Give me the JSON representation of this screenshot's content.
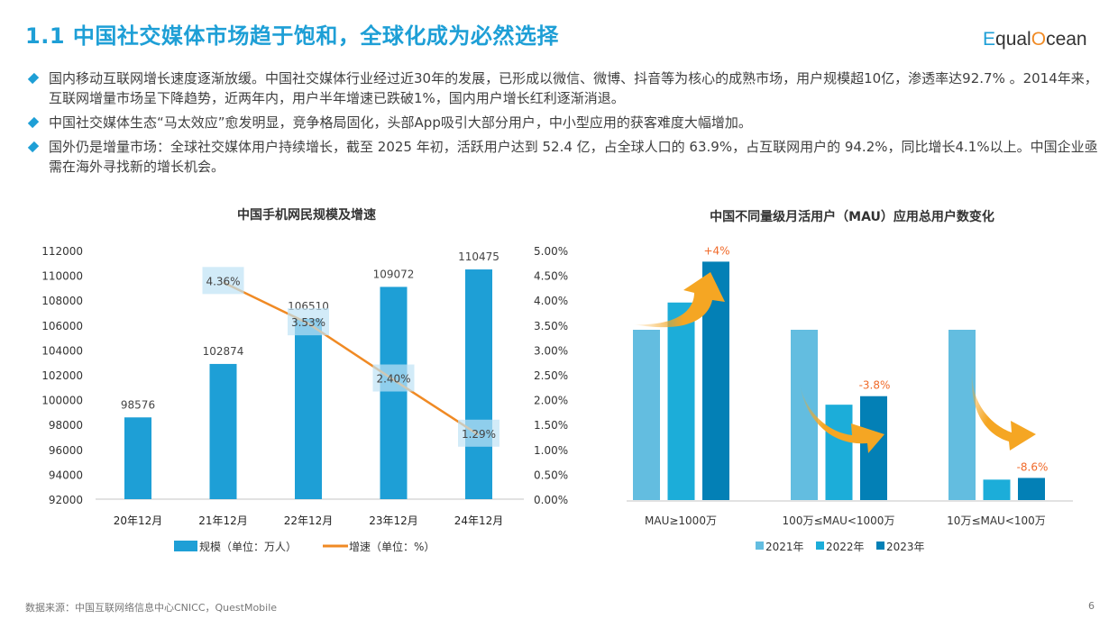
{
  "header": {
    "title": "1.1 中国社交媒体市场趋于饱和，全球化成为必然选择",
    "logo": "EqualOcean"
  },
  "bullets": [
    "国内移动互联网增长速度逐渐放缓。中国社交媒体行业经过近30年的发展，已形成以微信、微博、抖音等为核心的成熟市场，用户规模超10亿，渗透率达92.7% 。2014年来，互联网增量市场呈下降趋势，近两年内，用户半年增速已跌破1%，国内用户增长红利逐渐消退。",
    "中国社交媒体生态“马太效应”愈发明显，竞争格局固化，头部App吸引大部分用户，中小型应用的获客难度大幅增加。",
    "国外仍是增量市场：全球社交媒体用户持续增长，截至 2025 年初，活跃用户达到 52.4 亿，占全球人口的 63.9%，占互联网用户的 94.2%，同比增长4.1%以上。中国企业亟需在海外寻找新的增长机会。"
  ],
  "chart_data": [
    {
      "type": "bar+line",
      "title": "中国手机网民规模及增速",
      "categories": [
        "20年12月",
        "21年12月",
        "22年12月",
        "23年12月",
        "24年12月"
      ],
      "series": [
        {
          "name": "规模（单位：万人）",
          "type": "bar",
          "axis": "left",
          "values": [
            98576,
            102874,
            106510,
            109072,
            110475
          ],
          "labels": [
            "98576",
            "102874",
            "106510",
            "109072",
            "110475"
          ],
          "color": "#1e9fd6"
        },
        {
          "name": "增速（单位：%）",
          "type": "line",
          "axis": "right",
          "values": [
            null,
            4.36,
            3.53,
            2.4,
            1.29
          ],
          "labels": [
            "",
            "4.36%",
            "3.53%",
            "2.40%",
            "1.29%"
          ],
          "color": "#f08a24"
        }
      ],
      "ylim_left": [
        92000,
        112000
      ],
      "yticks_left": [
        "92000",
        "94000",
        "96000",
        "98000",
        "100000",
        "102000",
        "104000",
        "106000",
        "108000",
        "110000",
        "112000"
      ],
      "ylim_right": [
        0,
        5
      ],
      "yticks_right": [
        "0.00%",
        "0.50%",
        "1.00%",
        "1.50%",
        "2.00%",
        "2.50%",
        "3.00%",
        "3.50%",
        "4.00%",
        "4.50%",
        "5.00%"
      ],
      "grid": false,
      "legend": "bottom"
    },
    {
      "type": "bar",
      "title": "中国不同量级月活用户（MAU）应用总用户数变化",
      "categories": [
        "MAU≥1000万",
        "100万≤MAU<1000万",
        "10万≤MAU<100万"
      ],
      "series": [
        {
          "name": "2021年",
          "values": [
            100,
            100,
            100
          ],
          "color": "#63bde0"
        },
        {
          "name": "2022年",
          "values": [
            116,
            56,
            12
          ],
          "color": "#1cadd9"
        },
        {
          "name": "2023年",
          "values": [
            140,
            61,
            13
          ],
          "color": "#0380b6"
        }
      ],
      "annotations": [
        "+4%",
        "-3.8%",
        "-8.6%"
      ],
      "annotation_color": "#f06a2a",
      "arrow_color": "#f5a623",
      "yaxis_visible": false,
      "legend": "bottom"
    }
  ],
  "footer": {
    "source": "数据来源：中国互联网络信息中心CNICC，QuestMobile",
    "page": "6"
  }
}
